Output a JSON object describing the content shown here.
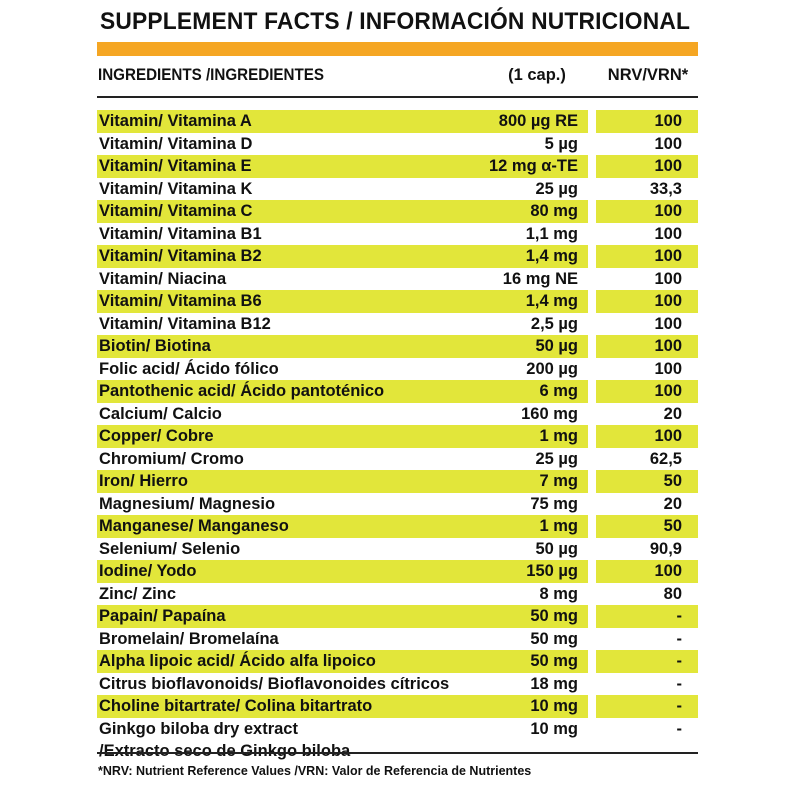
{
  "title": "SUPPLEMENT FACTS / INFORMACIÓN NUTRICIONAL",
  "header": {
    "ingredients": "INGREDIENTS /INGREDIENTES",
    "dose": "(1 cap.)",
    "nrv": "NRV/VRN*"
  },
  "accent_color": "#f5a623",
  "highlight_color": "#e2e63a",
  "rows": [
    {
      "name": "Vitamin/ Vitamina A",
      "dose": "800 µg RE",
      "nrv": "100",
      "highlight": true
    },
    {
      "name": "Vitamin/ Vitamina D",
      "dose": "5 µg",
      "nrv": "100",
      "highlight": false
    },
    {
      "name": "Vitamin/ Vitamina E",
      "dose": "12 mg α-TE",
      "nrv": "100",
      "highlight": true
    },
    {
      "name": "Vitamin/ Vitamina K",
      "dose": "25 µg",
      "nrv": "33,3",
      "highlight": false
    },
    {
      "name": "Vitamin/ Vitamina C",
      "dose": "80 mg",
      "nrv": "100",
      "highlight": true
    },
    {
      "name": "Vitamin/ Vitamina B1",
      "dose": "1,1 mg",
      "nrv": "100",
      "highlight": false
    },
    {
      "name": "Vitamin/ Vitamina B2",
      "dose": "1,4 mg",
      "nrv": "100",
      "highlight": true
    },
    {
      "name": "Vitamin/ Niacina",
      "dose": "16 mg NE",
      "nrv": "100",
      "highlight": false
    },
    {
      "name": "Vitamin/ Vitamina B6",
      "dose": "1,4 mg",
      "nrv": "100",
      "highlight": true
    },
    {
      "name": "Vitamin/ Vitamina B12",
      "dose": "2,5 µg",
      "nrv": "100",
      "highlight": false
    },
    {
      "name": "Biotin/ Biotina",
      "dose": "50 µg",
      "nrv": "100",
      "highlight": true
    },
    {
      "name": "Folic acid/ Ácido fólico",
      "dose": "200 µg",
      "nrv": "100",
      "highlight": false
    },
    {
      "name": "Pantothenic acid/ Ácido pantoténico",
      "dose": "6 mg",
      "nrv": "100",
      "highlight": true
    },
    {
      "name": "Calcium/ Calcio",
      "dose": "160 mg",
      "nrv": "20",
      "highlight": false
    },
    {
      "name": "Copper/ Cobre",
      "dose": "1 mg",
      "nrv": "100",
      "highlight": true
    },
    {
      "name": "Chromium/ Cromo",
      "dose": "25 µg",
      "nrv": "62,5",
      "highlight": false
    },
    {
      "name": "Iron/ Hierro",
      "dose": "7 mg",
      "nrv": "50",
      "highlight": true
    },
    {
      "name": "Magnesium/ Magnesio",
      "dose": "75 mg",
      "nrv": "20",
      "highlight": false
    },
    {
      "name": "Manganese/ Manganeso",
      "dose": "1 mg",
      "nrv": "50",
      "highlight": true
    },
    {
      "name": "Selenium/ Selenio",
      "dose": "50 µg",
      "nrv": "90,9",
      "highlight": false
    },
    {
      "name": "Iodine/ Yodo",
      "dose": "150 µg",
      "nrv": "100",
      "highlight": true
    },
    {
      "name": "Zinc/ Zinc",
      "dose": "8 mg",
      "nrv": "80",
      "highlight": false
    },
    {
      "name": "Papain/ Papaína",
      "dose": "50 mg",
      "nrv": "-",
      "highlight": true
    },
    {
      "name": "Bromelain/ Bromelaína",
      "dose": "50 mg",
      "nrv": "-",
      "highlight": false
    },
    {
      "name": "Alpha lipoic acid/ Ácido alfa lipoico",
      "dose": "50 mg",
      "nrv": "-",
      "highlight": true
    },
    {
      "name": "Citrus bioflavonoids/ Bioflavonoides cítricos",
      "dose": "18 mg",
      "nrv": "-",
      "highlight": false
    },
    {
      "name": "Choline bitartrate/ Colina bitartrato",
      "dose": "10 mg",
      "nrv": "-",
      "highlight": true
    },
    {
      "name": "Ginkgo biloba dry extract",
      "name2": "/Extracto seco de Ginkgo biloba",
      "dose": "10 mg",
      "nrv": "-",
      "highlight": false
    }
  ],
  "footnote": "*NRV: Nutrient Reference Values /VRN: Valor de Referencia de Nutrientes"
}
